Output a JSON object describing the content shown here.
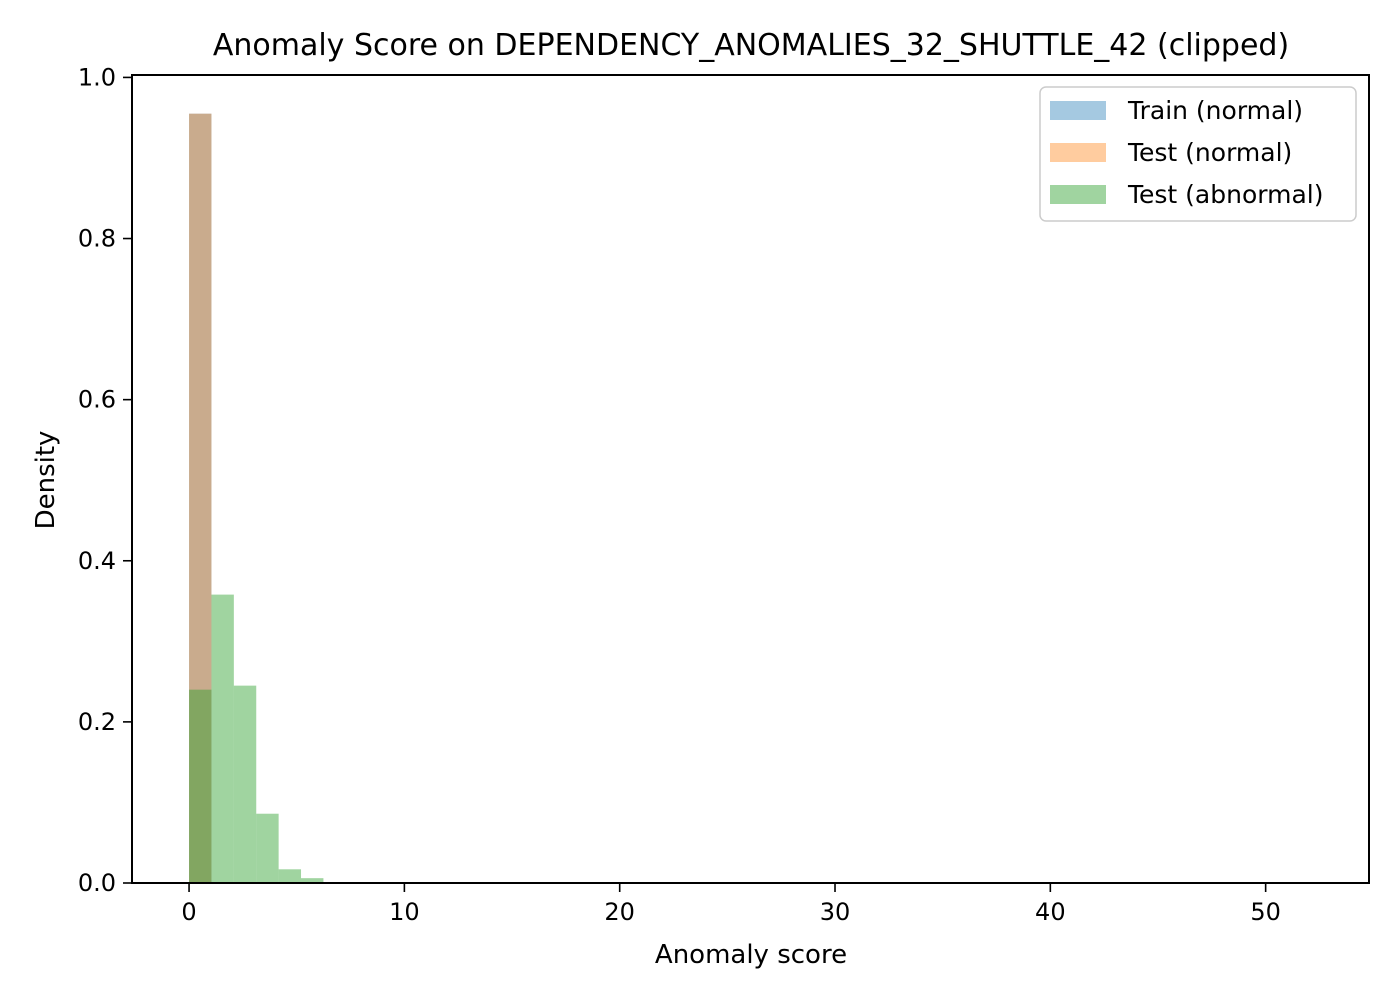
{
  "chart_data": {
    "type": "bar",
    "title": "Anomaly Score on DEPENDENCY_ANOMALIES_32_SHUTTLE_42 (clipped)",
    "xlabel": "Anomaly score",
    "ylabel": "Density",
    "xlim": [
      -2.65,
      54.8
    ],
    "ylim": [
      0,
      1.003
    ],
    "x_ticks": [
      0,
      10,
      20,
      30,
      40,
      50
    ],
    "y_ticks": [
      0.0,
      0.2,
      0.4,
      0.6,
      0.8,
      1.0
    ],
    "x_tick_labels": [
      "0",
      "10",
      "20",
      "30",
      "40",
      "50"
    ],
    "y_tick_labels": [
      "0.0",
      "0.2",
      "0.4",
      "0.6",
      "0.8",
      "1.0"
    ],
    "bin_width": 1.04,
    "grid": false,
    "legend_position": "top-right",
    "series": [
      {
        "name": "Train (normal)",
        "color": "#1f77b4",
        "opacity": 0.4,
        "bin_starts": [
          0.0
        ],
        "values": [
          0.955
        ]
      },
      {
        "name": "Test (normal)",
        "color": "#ff7f0e",
        "opacity": 0.4,
        "bin_starts": [
          0.0
        ],
        "values": [
          0.955
        ]
      },
      {
        "name": "Test (abnormal)",
        "color": "#2ca02c",
        "opacity": 0.45,
        "bin_starts": [
          0.0,
          1.04,
          2.08,
          3.12,
          4.16,
          5.2
        ],
        "values": [
          0.24,
          0.358,
          0.245,
          0.086,
          0.017,
          0.006
        ]
      }
    ]
  }
}
